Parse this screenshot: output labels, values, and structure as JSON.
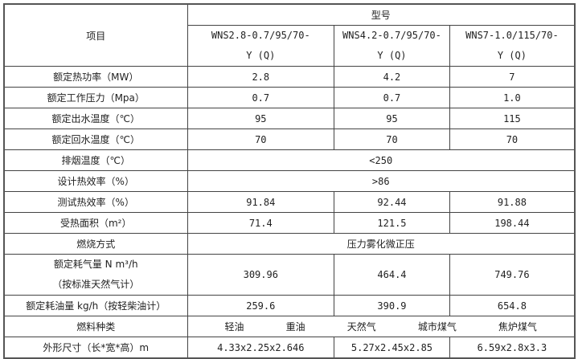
{
  "header": {
    "item": "项目",
    "model": "型号",
    "models": [
      {
        "line1": "WNS2.8-0.7/95/70-",
        "line2": "Y (Q)"
      },
      {
        "line1": "WNS4.2-0.7/95/70-",
        "line2": "Y (Q)"
      },
      {
        "line1": "WNS7-1.0/115/70-",
        "line2": "Y (Q)"
      }
    ]
  },
  "rows": [
    {
      "label": "额定热功率（MW）",
      "values": [
        "2.8",
        "4.2",
        "7"
      ]
    },
    {
      "label": "额定工作压力（Mpa）",
      "values": [
        "0.7",
        "0.7",
        "1.0"
      ]
    },
    {
      "label": "额定出水温度（℃）",
      "values": [
        "95",
        "95",
        "115"
      ]
    },
    {
      "label": "额定回水温度（℃）",
      "values": [
        "70",
        "70",
        "70"
      ]
    },
    {
      "label": "排烟温度（℃）",
      "merged": "<250"
    },
    {
      "label": "设计热效率（%）",
      "merged": ">86"
    },
    {
      "label": "测试热效率（%）",
      "values": [
        "91.84",
        "92.44",
        "91.88"
      ]
    },
    {
      "label": "受热面积（m²）",
      "values": [
        "71.4",
        "121.5",
        "198.44"
      ]
    },
    {
      "label": "燃烧方式",
      "merged": "压力雾化微正压"
    }
  ],
  "gas": {
    "line1": "额定耗气量 N m³/h",
    "line2": "（按标准天然气计）",
    "values": [
      "309.96",
      "464.4",
      "749.76"
    ]
  },
  "oil": {
    "label": "额定耗油量 kg/h（按轻柴油计）",
    "values": [
      "259.6",
      "390.9",
      "654.8"
    ]
  },
  "fuel": {
    "label": "燃料种类",
    "types": [
      "轻油",
      "重油",
      "天然气",
      "城市煤气",
      "焦炉煤气"
    ]
  },
  "size": {
    "label": "外形尺寸（长*宽*高）m",
    "values": [
      "4.33x2.25x2.646",
      "5.27x2.45x2.85",
      "6.59x2.8x3.3"
    ]
  }
}
